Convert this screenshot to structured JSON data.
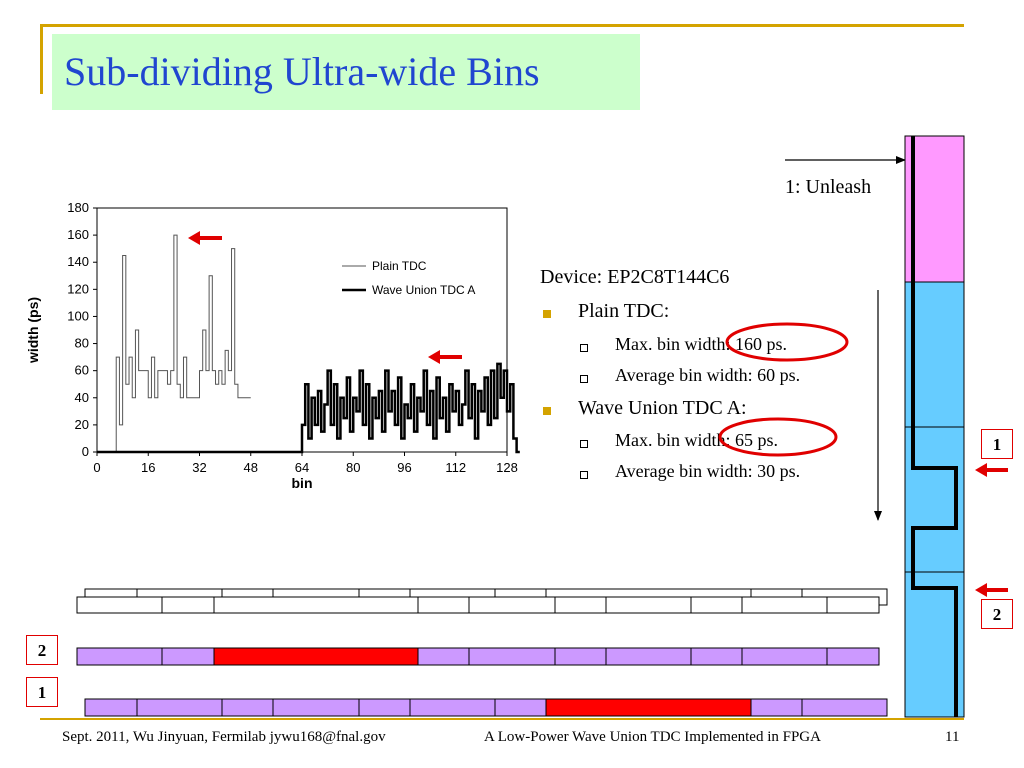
{
  "slide": {
    "title": "Sub-dividing Ultra-wide Bins",
    "unleash_label": "1: Unleash",
    "box_labels": [
      "1",
      "2",
      "2",
      "1"
    ],
    "footer_left": "Sept. 2011, Wu Jinyuan, Fermilab jywu168@fnal.gov",
    "footer_center": "A Low-Power Wave Union TDC Implemented in FPGA",
    "page_number": "11",
    "colors": {
      "title_text": "#2046d0",
      "title_bg": "#ccffcc",
      "rule_gold": "#d4a300",
      "arrow_red": "#e00000",
      "pink": "#ff99ff",
      "blue": "#66ccff",
      "purple": "#cc99ff",
      "red_bin": "#ff0000"
    }
  },
  "info": {
    "device": "Device: EP2C8T144C6",
    "plain_title": "Plain TDC:",
    "plain_max": "Max. bin width: 160 ps.",
    "plain_avg": "Average bin width: 60 ps.",
    "wave_title": "Wave Union TDC A:",
    "wave_max": "Max. bin width: 65 ps.",
    "wave_avg": "Average bin width: 30 ps."
  },
  "chart_data": {
    "type": "line",
    "xlabel": "bin",
    "ylabel": "width (ps)",
    "xlim": [
      0,
      128
    ],
    "ylim": [
      0,
      180
    ],
    "xticks": [
      0,
      16,
      32,
      48,
      64,
      80,
      96,
      112,
      128
    ],
    "yticks": [
      0,
      20,
      40,
      60,
      80,
      100,
      120,
      140,
      160,
      180
    ],
    "legend_position": "top-right",
    "series": [
      {
        "name": "Plain TDC",
        "color": "#555555",
        "values": [
          0,
          0,
          0,
          0,
          0,
          0,
          70,
          20,
          145,
          50,
          70,
          40,
          90,
          60,
          60,
          60,
          40,
          70,
          40,
          60,
          60,
          60,
          50,
          60,
          160,
          50,
          40,
          70,
          40,
          40,
          40,
          40,
          60,
          90,
          60,
          130,
          60,
          50,
          60,
          50,
          75,
          60,
          150,
          50,
          40,
          40,
          40,
          40
        ]
      },
      {
        "name": "Wave Union TDC A",
        "color": "#000000",
        "values": [
          0,
          0,
          0,
          0,
          0,
          0,
          0,
          0,
          0,
          0,
          0,
          0,
          0,
          0,
          0,
          0,
          0,
          0,
          0,
          0,
          0,
          0,
          0,
          0,
          0,
          0,
          0,
          0,
          0,
          0,
          0,
          0,
          0,
          0,
          0,
          0,
          0,
          0,
          0,
          0,
          0,
          0,
          0,
          0,
          0,
          0,
          0,
          0,
          0,
          0,
          0,
          0,
          0,
          0,
          0,
          0,
          0,
          0,
          0,
          0,
          0,
          0,
          0,
          0,
          20,
          50,
          10,
          40,
          20,
          45,
          15,
          35,
          60,
          20,
          50,
          10,
          40,
          25,
          55,
          15,
          40,
          30,
          60,
          20,
          50,
          10,
          40,
          25,
          45,
          15,
          60,
          30,
          45,
          20,
          55,
          10,
          35,
          25,
          50,
          15,
          40,
          30,
          60,
          20,
          45,
          10,
          55,
          25,
          40,
          15,
          50,
          30,
          45,
          20,
          35,
          60,
          25,
          50,
          10,
          45,
          30,
          55,
          20,
          60,
          25,
          65,
          40,
          60,
          30,
          50,
          10,
          0
        ]
      }
    ]
  }
}
